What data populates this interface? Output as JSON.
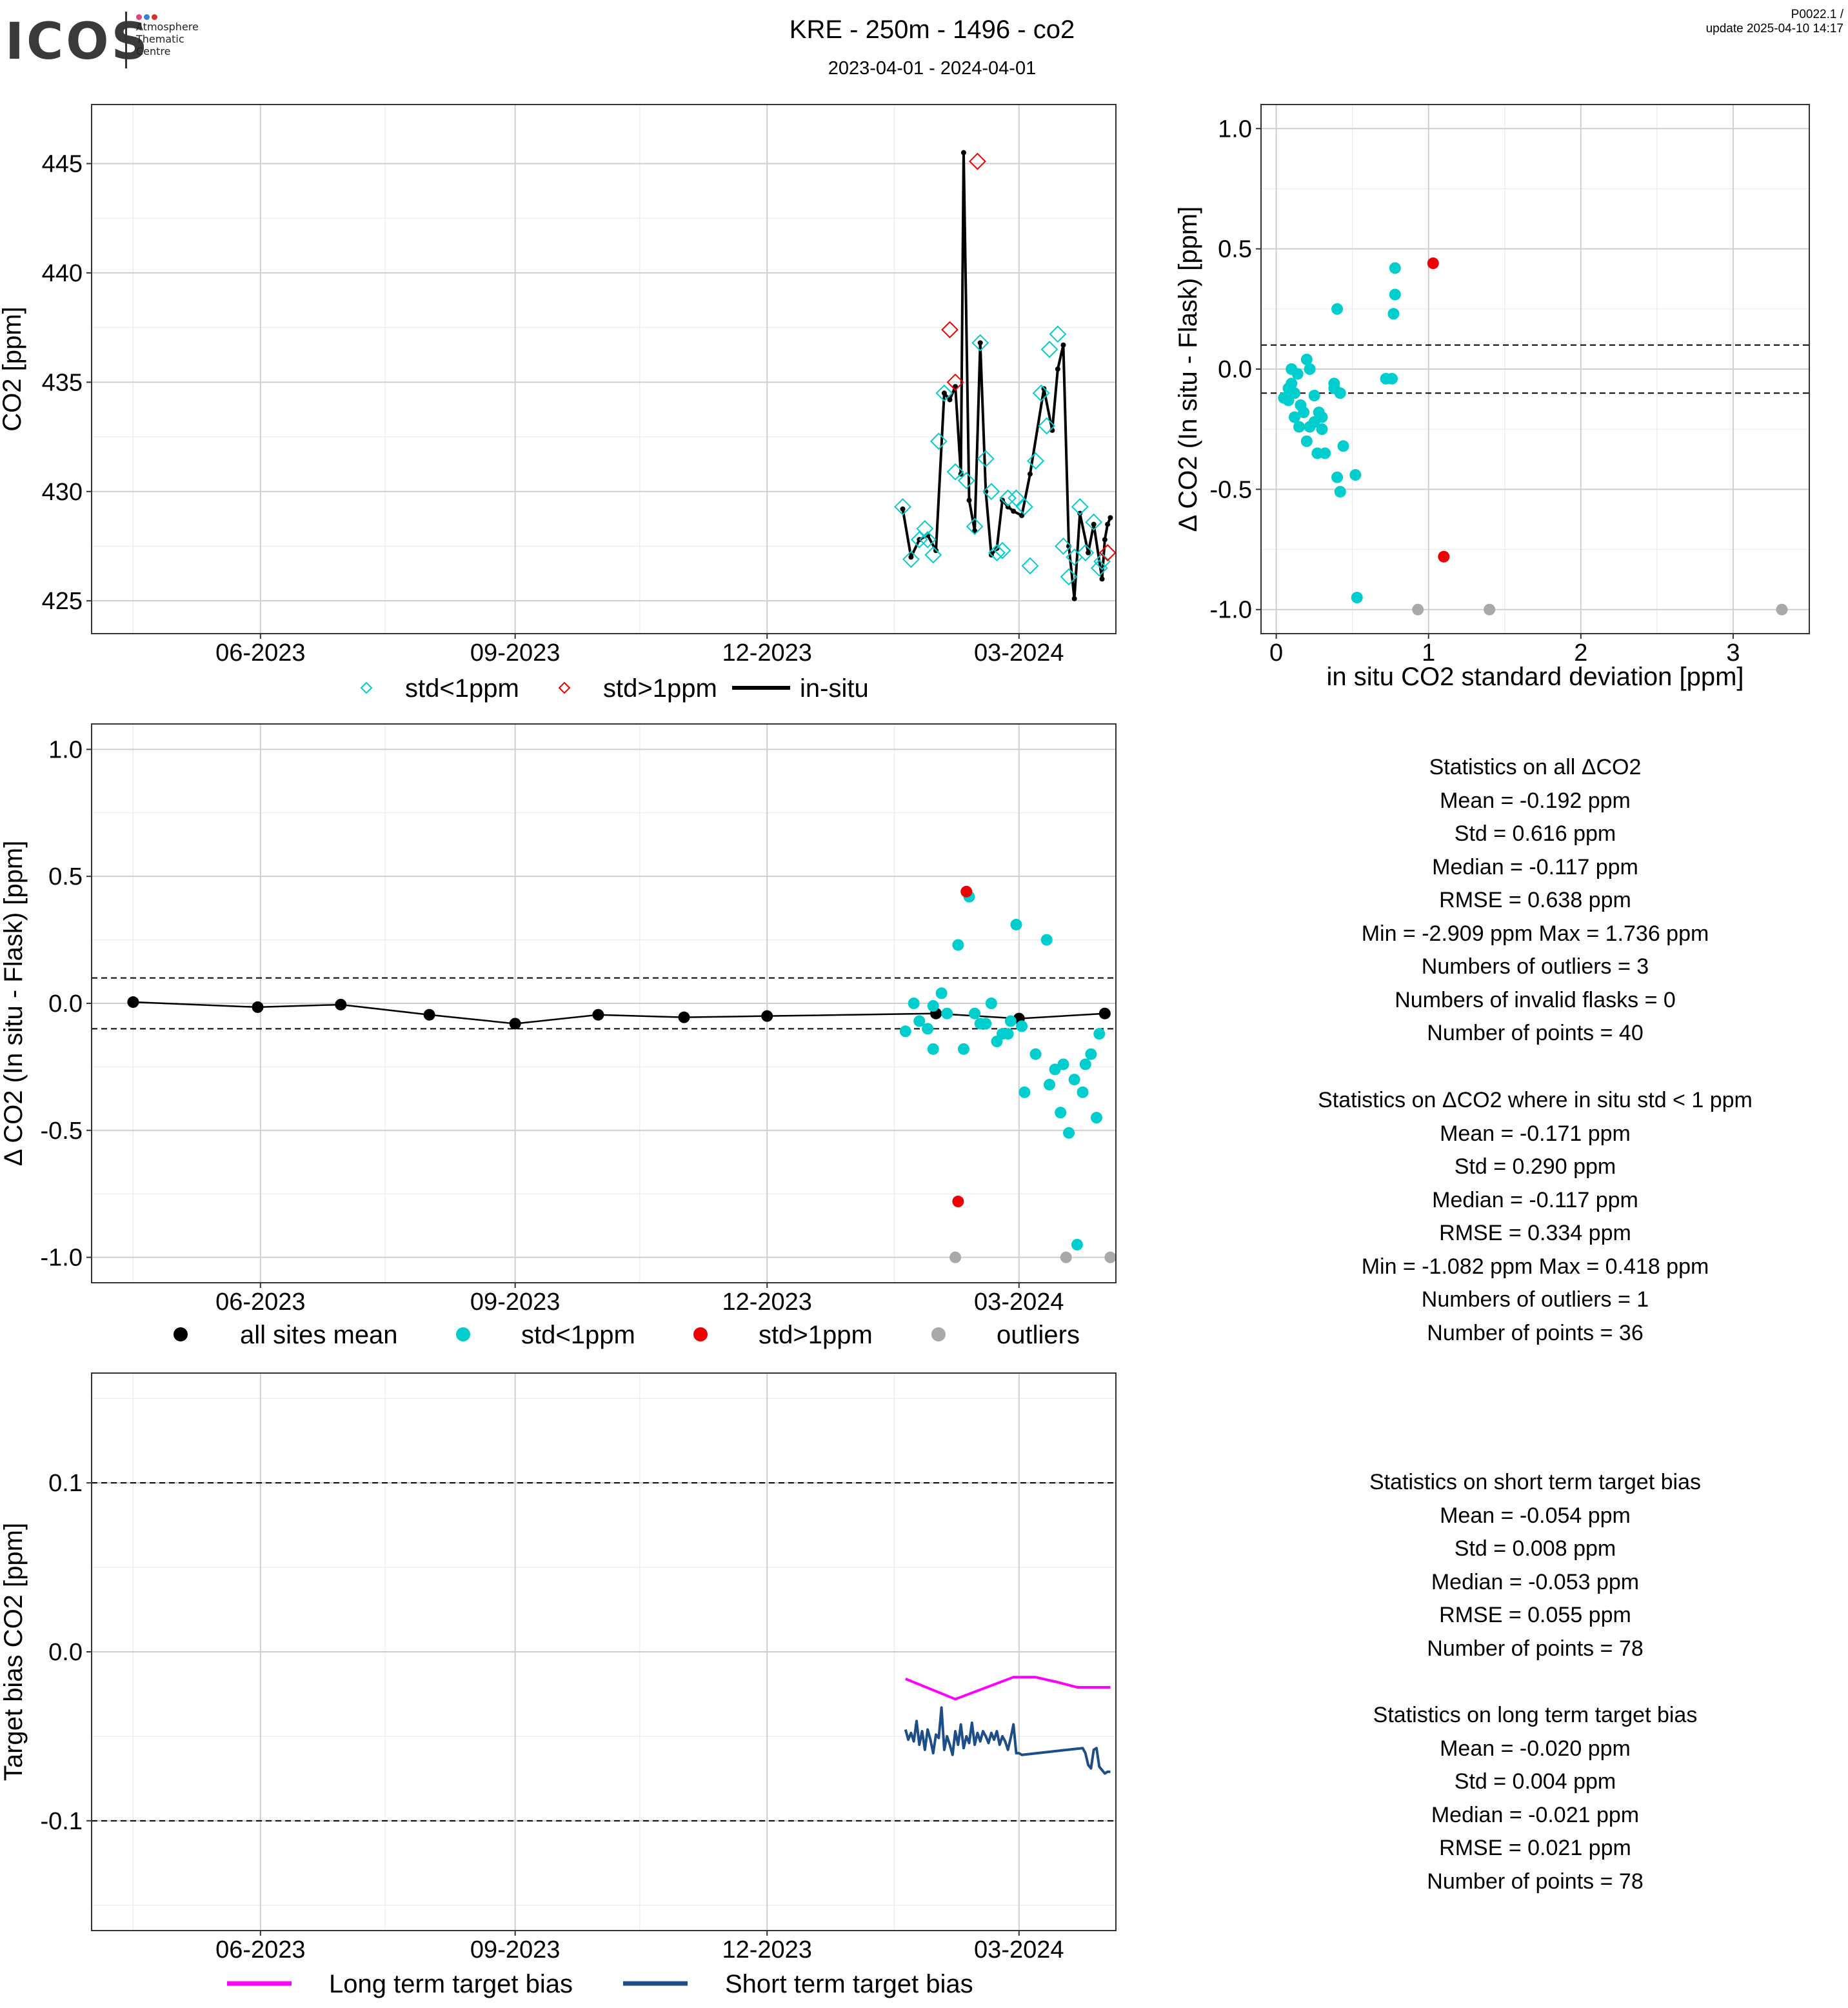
{
  "header": {
    "logo_text": "ICOS",
    "logo_lines": [
      "Atmosphere",
      "Thematic",
      "Centre"
    ],
    "logo_colors": [
      "#e0457b",
      "#3a7fd5",
      "#d93025"
    ],
    "title": "KRE - 250m - 1496 - co2",
    "subtitle": "2023-04-01 - 2024-04-01",
    "meta_line1": "P0022.1 /",
    "meta_line2": "update  2025-04-10 14:17"
  },
  "colors": {
    "cyan": "#00CDCD",
    "red": "#EE0000",
    "gray": "#A9A9A9",
    "black": "#000000",
    "magenta": "#FF00FF",
    "navy": "#1D4E89",
    "grid_major": "#CFCFCF",
    "grid_minor": "#EBEBEB"
  },
  "stats_blocks": [
    {
      "lines": [
        "Statistics on all ΔCO2",
        "Mean =  -0.192 ppm",
        "Std =  0.616 ppm",
        "Median =  -0.117 ppm",
        "RMSE =  0.638 ppm",
        "Min =  -2.909 ppm Max =  1.736 ppm",
        "Numbers of outliers =  3",
        "Numbers of invalid flasks =  0",
        "Number of points =  40"
      ]
    },
    {
      "lines": [
        "Statistics on ΔCO2 where in situ std < 1 ppm",
        "Mean =  -0.171 ppm",
        "Std =  0.290 ppm",
        "Median =  -0.117 ppm",
        "RMSE =  0.334 ppm",
        "Min =  -1.082 ppm Max =  0.418 ppm",
        "Numbers of outliers =  1",
        "Number of points =  36"
      ]
    },
    {
      "lines": [
        "Statistics on short term target bias",
        "Mean =  -0.054 ppm",
        "Std =  0.008 ppm",
        "Median =  -0.053 ppm",
        "RMSE =  0.055 ppm",
        "Number of points =  78"
      ]
    },
    {
      "lines": [
        "Statistics on long term target bias",
        "Mean =  -0.020 ppm",
        "Std =  0.004 ppm",
        "Median =  -0.021 ppm",
        "RMSE =  0.021 ppm",
        "Number of points =  78"
      ]
    }
  ],
  "chart_data": [
    {
      "id": "co2_timeseries",
      "type": "line",
      "ylabel": "CO2 [ppm]",
      "xlabel": "",
      "x_ticks": [
        "06-2023",
        "09-2023",
        "12-2023",
        "03-2024"
      ],
      "y_ticks": [
        425,
        430,
        435,
        440,
        445
      ],
      "xlim": [
        "2023-04-01",
        "2024-04-05"
      ],
      "ylim": [
        423.5,
        447.7
      ],
      "grid": true,
      "legend_position": "bottom",
      "legend": [
        "std<1ppm",
        "std>1ppm",
        "in-situ"
      ],
      "series": [
        {
          "name": "in-situ",
          "style": "line+points",
          "color": "#000000",
          "x": [
            "2024-01-19",
            "2024-01-22",
            "2024-01-25",
            "2024-01-28",
            "2024-01-31",
            "2024-02-03",
            "2024-02-05",
            "2024-02-07",
            "2024-02-09",
            "2024-02-10",
            "2024-02-12",
            "2024-02-14",
            "2024-02-16",
            "2024-02-18",
            "2024-02-20",
            "2024-02-22",
            "2024-02-24",
            "2024-02-26",
            "2024-02-28",
            "2024-03-02",
            "2024-03-05",
            "2024-03-10",
            "2024-03-13",
            "2024-03-15",
            "2024-03-17",
            "2024-03-19",
            "2024-03-21",
            "2024-03-23",
            "2024-03-26",
            "2024-03-28",
            "2024-03-31",
            "2024-04-01",
            "2024-04-02",
            "2024-04-03"
          ],
          "y": [
            429.2,
            427.0,
            427.8,
            428.0,
            427.3,
            434.5,
            434.2,
            434.8,
            430.8,
            445.5,
            429.6,
            428.2,
            436.8,
            430.0,
            427.1,
            427.4,
            429.6,
            429.3,
            429.1,
            428.9,
            430.8,
            434.7,
            432.8,
            435.6,
            436.7,
            427.5,
            425.1,
            429.0,
            427.2,
            428.5,
            426.0,
            427.8,
            428.5,
            428.8
          ]
        },
        {
          "name": "std<1ppm",
          "style": "diamond",
          "color": "#00CDCD",
          "x": [
            "2024-01-19",
            "2024-01-22",
            "2024-01-25",
            "2024-01-27",
            "2024-01-28",
            "2024-01-30",
            "2024-02-01",
            "2024-02-03",
            "2024-02-07",
            "2024-02-11",
            "2024-02-14",
            "2024-02-16",
            "2024-02-18",
            "2024-02-20",
            "2024-02-22",
            "2024-02-24",
            "2024-02-26",
            "2024-02-29",
            "2024-03-03",
            "2024-03-05",
            "2024-03-07",
            "2024-03-09",
            "2024-03-11",
            "2024-03-12",
            "2024-03-15",
            "2024-03-17",
            "2024-03-19",
            "2024-03-21",
            "2024-03-23",
            "2024-03-25",
            "2024-03-28",
            "2024-03-30",
            "2024-03-31"
          ],
          "y": [
            429.3,
            426.9,
            427.8,
            428.3,
            427.8,
            427.1,
            432.3,
            434.5,
            430.9,
            430.5,
            428.4,
            436.8,
            431.5,
            430.0,
            427.2,
            427.3,
            429.7,
            429.7,
            429.3,
            426.6,
            431.4,
            434.5,
            433.0,
            436.5,
            437.2,
            427.5,
            426.1,
            427.0,
            429.3,
            427.2,
            428.6,
            426.5,
            426.8
          ]
        },
        {
          "name": "std>1ppm",
          "style": "diamond",
          "color": "#EE0000",
          "x": [
            "2024-02-05",
            "2024-02-07",
            "2024-02-15",
            "2024-04-02"
          ],
          "y": [
            437.4,
            435.0,
            445.1,
            427.2
          ]
        }
      ]
    },
    {
      "id": "delta_vs_std",
      "type": "scatter",
      "xlabel": "in situ CO2 standard deviation [ppm]",
      "ylabel": "Δ CO2 (In situ - Flask) [ppm]",
      "x_ticks": [
        0,
        1,
        2,
        3
      ],
      "y_ticks": [
        -1.0,
        -0.5,
        0.0,
        0.5,
        1.0
      ],
      "xlim": [
        -0.1,
        3.5
      ],
      "ylim": [
        -1.1,
        1.1
      ],
      "grid": true,
      "threshold_lines": [
        0.1,
        -0.1
      ],
      "series": [
        {
          "name": "std<1ppm",
          "color": "#00CDCD",
          "x": [
            0.05,
            0.08,
            0.1,
            0.12,
            0.1,
            0.14,
            0.16,
            0.18,
            0.2,
            0.22,
            0.15,
            0.12,
            0.08,
            0.25,
            0.28,
            0.3,
            0.2,
            0.22,
            0.25,
            0.27,
            0.3,
            0.32,
            0.38,
            0.4,
            0.42,
            0.4,
            0.44,
            0.52,
            0.53,
            0.72,
            0.76,
            0.78,
            0.78,
            0.77,
            0.42,
            0.38
          ],
          "y": [
            -0.12,
            -0.08,
            -0.06,
            -0.1,
            0.0,
            -0.02,
            -0.15,
            -0.18,
            0.04,
            0.0,
            -0.24,
            -0.2,
            -0.13,
            -0.11,
            -0.18,
            -0.2,
            -0.3,
            -0.24,
            -0.22,
            -0.35,
            -0.25,
            -0.35,
            -0.08,
            -0.45,
            -0.51,
            0.25,
            -0.32,
            -0.44,
            -0.95,
            -0.04,
            -0.04,
            0.31,
            0.42,
            0.23,
            -0.1,
            -0.06
          ]
        },
        {
          "name": "std>1ppm",
          "color": "#EE0000",
          "x": [
            1.03,
            1.1
          ],
          "y": [
            0.44,
            -0.78
          ]
        },
        {
          "name": "outliers",
          "color": "#A9A9A9",
          "x": [
            0.93,
            1.4,
            3.32
          ],
          "y": [
            -1.0,
            -1.0,
            -1.0
          ]
        }
      ]
    },
    {
      "id": "delta_timeseries",
      "type": "scatter",
      "xlabel": "",
      "ylabel": "Δ CO2 (In situ - Flask) [ppm]",
      "x_ticks": [
        "06-2023",
        "09-2023",
        "12-2023",
        "03-2024"
      ],
      "y_ticks": [
        -1.0,
        -0.5,
        0.0,
        0.5,
        1.0
      ],
      "xlim": [
        "2023-04-01",
        "2024-04-05"
      ],
      "ylim": [
        -1.1,
        1.1
      ],
      "grid": true,
      "threshold_lines": [
        0.1,
        -0.1
      ],
      "legend_position": "bottom",
      "legend": [
        "all sites mean",
        "std<1ppm",
        "std>1ppm",
        "outliers"
      ],
      "series": [
        {
          "name": "all sites mean",
          "style": "line+points",
          "color": "#000000",
          "x": [
            "2023-04-16",
            "2023-05-31",
            "2023-06-30",
            "2023-08-01",
            "2023-09-01",
            "2023-10-01",
            "2023-11-01",
            "2023-12-01",
            "2024-01-31",
            "2024-03-01",
            "2024-04-01"
          ],
          "y": [
            0.005,
            -0.015,
            -0.005,
            -0.045,
            -0.08,
            -0.045,
            -0.055,
            -0.05,
            -0.04,
            -0.06,
            -0.04
          ]
        },
        {
          "name": "std<1ppm",
          "color": "#00CDCD",
          "x": [
            "2024-01-20",
            "2024-01-23",
            "2024-01-25",
            "2024-01-28",
            "2024-01-30",
            "2024-02-02",
            "2024-02-04",
            "2024-02-08",
            "2024-02-10",
            "2024-02-12",
            "2024-02-14",
            "2024-02-16",
            "2024-02-20",
            "2024-02-22",
            "2024-02-24",
            "2024-02-26",
            "2024-02-27",
            "2024-02-29",
            "2024-03-02",
            "2024-03-03",
            "2024-03-07",
            "2024-03-11",
            "2024-03-12",
            "2024-03-14",
            "2024-03-16",
            "2024-03-17",
            "2024-03-19",
            "2024-03-21",
            "2024-03-22",
            "2024-03-24",
            "2024-03-25",
            "2024-03-27",
            "2024-03-29",
            "2024-03-30",
            "2024-01-30",
            "2024-02-18"
          ],
          "y": [
            -0.11,
            0.0,
            -0.07,
            -0.1,
            -0.18,
            0.04,
            -0.04,
            0.23,
            -0.18,
            0.42,
            -0.04,
            -0.08,
            0.0,
            -0.15,
            -0.12,
            -0.12,
            -0.07,
            0.31,
            -0.09,
            -0.35,
            -0.2,
            0.25,
            -0.32,
            -0.26,
            -0.43,
            -0.24,
            -0.51,
            -0.3,
            -0.95,
            -0.35,
            -0.24,
            -0.2,
            -0.45,
            -0.12,
            -0.01,
            -0.08
          ]
        },
        {
          "name": "std>1ppm",
          "color": "#EE0000",
          "x": [
            "2024-02-08",
            "2024-02-11"
          ],
          "y": [
            -0.78,
            0.44
          ]
        },
        {
          "name": "outliers",
          "color": "#A9A9A9",
          "x": [
            "2024-02-07",
            "2024-03-18",
            "2024-04-03"
          ],
          "y": [
            -1.0,
            -1.0,
            -1.0
          ]
        }
      ]
    },
    {
      "id": "target_bias",
      "type": "line",
      "xlabel": "",
      "ylabel": "Target bias CO2 [ppm]",
      "x_ticks": [
        "06-2023",
        "09-2023",
        "12-2023",
        "03-2024"
      ],
      "y_ticks": [
        -0.1,
        0.0,
        0.1
      ],
      "y_tick_labels": [
        "-0.1",
        "0.0",
        "0.1"
      ],
      "xlim": [
        "2023-04-01",
        "2024-04-05"
      ],
      "ylim": [
        -0.165,
        0.165
      ],
      "grid": true,
      "threshold_lines": [
        0.1,
        -0.1
      ],
      "legend_position": "bottom",
      "legend": [
        "Long term target bias",
        "Short term target bias"
      ],
      "series": [
        {
          "name": "Long term target bias",
          "color": "#FF00FF",
          "x": [
            "2024-01-20",
            "2024-02-07",
            "2024-02-28",
            "2024-03-07",
            "2024-03-15",
            "2024-03-22",
            "2024-04-03"
          ],
          "y": [
            -0.016,
            -0.028,
            -0.015,
            -0.015,
            -0.018,
            -0.021,
            -0.021
          ]
        },
        {
          "name": "Short term target bias",
          "color": "#1D4E89",
          "x": [
            "2024-01-20",
            "2024-01-21",
            "2024-01-22",
            "2024-01-23",
            "2024-01-24",
            "2024-01-25",
            "2024-01-26",
            "2024-01-27",
            "2024-01-28",
            "2024-01-29",
            "2024-01-30",
            "2024-01-31",
            "2024-02-01",
            "2024-02-02",
            "2024-02-03",
            "2024-02-04",
            "2024-02-05",
            "2024-02-06",
            "2024-02-07",
            "2024-02-08",
            "2024-02-09",
            "2024-02-10",
            "2024-02-11",
            "2024-02-12",
            "2024-02-13",
            "2024-02-14",
            "2024-02-15",
            "2024-02-16",
            "2024-02-17",
            "2024-02-18",
            "2024-02-19",
            "2024-02-20",
            "2024-02-21",
            "2024-02-22",
            "2024-02-23",
            "2024-02-24",
            "2024-02-25",
            "2024-02-26",
            "2024-02-27",
            "2024-02-28",
            "2024-02-29",
            "2024-03-01",
            "2024-03-02",
            "2024-03-24",
            "2024-03-25",
            "2024-03-26",
            "2024-03-27",
            "2024-03-28",
            "2024-03-29",
            "2024-03-30",
            "2024-03-31",
            "2024-04-01",
            "2024-04-02",
            "2024-04-03"
          ],
          "y": [
            -0.046,
            -0.052,
            -0.048,
            -0.053,
            -0.041,
            -0.055,
            -0.047,
            -0.058,
            -0.046,
            -0.052,
            -0.06,
            -0.049,
            -0.051,
            -0.033,
            -0.058,
            -0.05,
            -0.055,
            -0.061,
            -0.047,
            -0.055,
            -0.043,
            -0.057,
            -0.05,
            -0.054,
            -0.042,
            -0.055,
            -0.048,
            -0.053,
            -0.047,
            -0.05,
            -0.054,
            -0.048,
            -0.052,
            -0.047,
            -0.055,
            -0.05,
            -0.053,
            -0.058,
            -0.051,
            -0.043,
            -0.06,
            -0.06,
            -0.061,
            -0.057,
            -0.06,
            -0.067,
            -0.069,
            -0.058,
            -0.057,
            -0.068,
            -0.07,
            -0.072,
            -0.071,
            -0.071
          ]
        }
      ]
    }
  ]
}
